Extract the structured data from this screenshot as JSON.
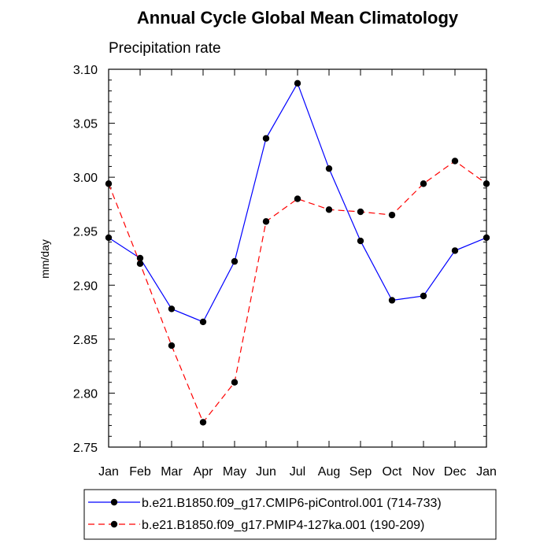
{
  "chart_data": {
    "type": "line",
    "title": "Annual Cycle Global Mean Climatology",
    "subtitle": "Precipitation rate",
    "xlabel": "",
    "ylabel": "mm/day",
    "categories": [
      "Jan",
      "Feb",
      "Mar",
      "Apr",
      "May",
      "Jun",
      "Jul",
      "Aug",
      "Sep",
      "Oct",
      "Nov",
      "Dec",
      "Jan"
    ],
    "ylim": [
      2.75,
      3.1
    ],
    "yticks": [
      "2.75",
      "2.80",
      "2.85",
      "2.90",
      "2.95",
      "3.00",
      "3.05",
      "3.10"
    ],
    "grid": false,
    "legend_position": "bottom",
    "series": [
      {
        "name": "b.e21.B1850.f09_g17.CMIP6-piControl.001 (714-733)",
        "color": "#0000ff",
        "dash": "solid",
        "marker": "filled-circle",
        "values": [
          2.944,
          2.925,
          2.878,
          2.866,
          2.922,
          3.036,
          3.087,
          3.008,
          2.941,
          2.886,
          2.89,
          2.932,
          2.944
        ]
      },
      {
        "name": "b.e21.B1850.f09_g17.PMIP4-127ka.001 (190-209)",
        "color": "#ff0000",
        "dash": "dashed",
        "marker": "filled-circle",
        "values": [
          2.994,
          2.92,
          2.844,
          2.773,
          2.81,
          2.959,
          2.98,
          2.97,
          2.968,
          2.965,
          2.994,
          3.015,
          2.994
        ]
      }
    ]
  }
}
